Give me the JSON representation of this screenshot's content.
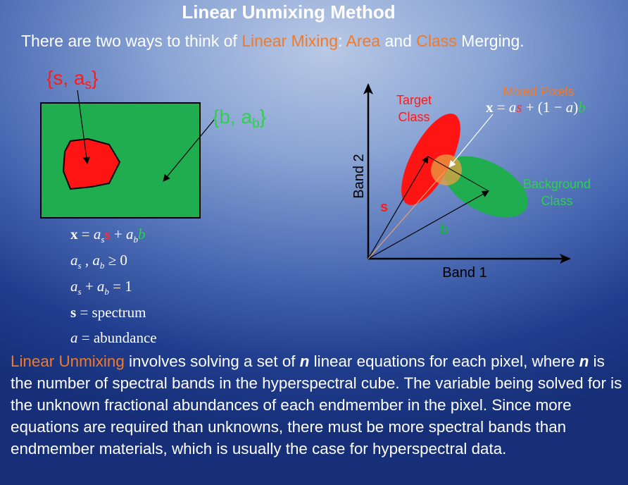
{
  "title": "Linear Unmixing Method",
  "subtitle": {
    "p1": "There are two ways to think of ",
    "linear_mixing": "Linear Mixing",
    "p2": ": ",
    "area": "Area",
    "p3": " and ",
    "class": "Class",
    "p4": " Merging."
  },
  "area_diagram": {
    "target_label_main": "{s, a",
    "target_label_sub": "s",
    "target_label_end": "}",
    "background_label_main": "{b, a",
    "background_label_sub": "b",
    "background_label_end": "}"
  },
  "equations": {
    "eq1": {
      "x": "x",
      "eq": " = ",
      "a1": "a",
      "s_sub": "s",
      "s": "s",
      "plus": " + ",
      "a2": "a",
      "b_sub": "b",
      "b": "b"
    },
    "eq2": {
      "a1": "a",
      "s_sub": "s",
      "comma": " , ",
      "a2": "a",
      "b_sub": "b",
      "rest": " ≥ 0"
    },
    "eq3": {
      "a1": "a",
      "s_sub": "s",
      "plus": " + ",
      "a2": "a",
      "b_sub": "b",
      "rest": " = 1"
    },
    "eq4": {
      "s": "s",
      "rest": " = spectrum"
    },
    "eq5": {
      "a": "a",
      "rest": " = abundance"
    }
  },
  "scatter_diagram": {
    "target_class_line1": "Target",
    "target_class_line2": "Class",
    "mixed_pixels": "Mixed Pixels",
    "mix_eq": {
      "x": "x",
      "eq": " = ",
      "a": "a",
      "s": "s",
      "mid": " + (1 − ",
      "a2": "a",
      "close": ")",
      "b": "b"
    },
    "background_line1": "Background",
    "background_line2": "Class",
    "band2": "Band 2",
    "band1": "Band 1",
    "s_label": "s",
    "b_label": "b"
  },
  "paragraph": {
    "lead": "Linear Unmixing",
    "t1": " involves solving a set of ",
    "n1": "n",
    "t2": " linear equations for each pixel, where ",
    "n2": "n",
    "t3": " is the number of spectral bands in the hyperspectral cube. The variable being solved for is the unknown fractional abundances of each endmember in the pixel. Since more equations are required than unknowns, there must be more spectral bands than endmember materials, which is usually the case for hyperspectral data."
  },
  "colors": {
    "accent_orange": "#f07a2a",
    "target_red": "#ff1a1a",
    "background_green": "#1fad4f",
    "label_green": "#2bd24a"
  }
}
